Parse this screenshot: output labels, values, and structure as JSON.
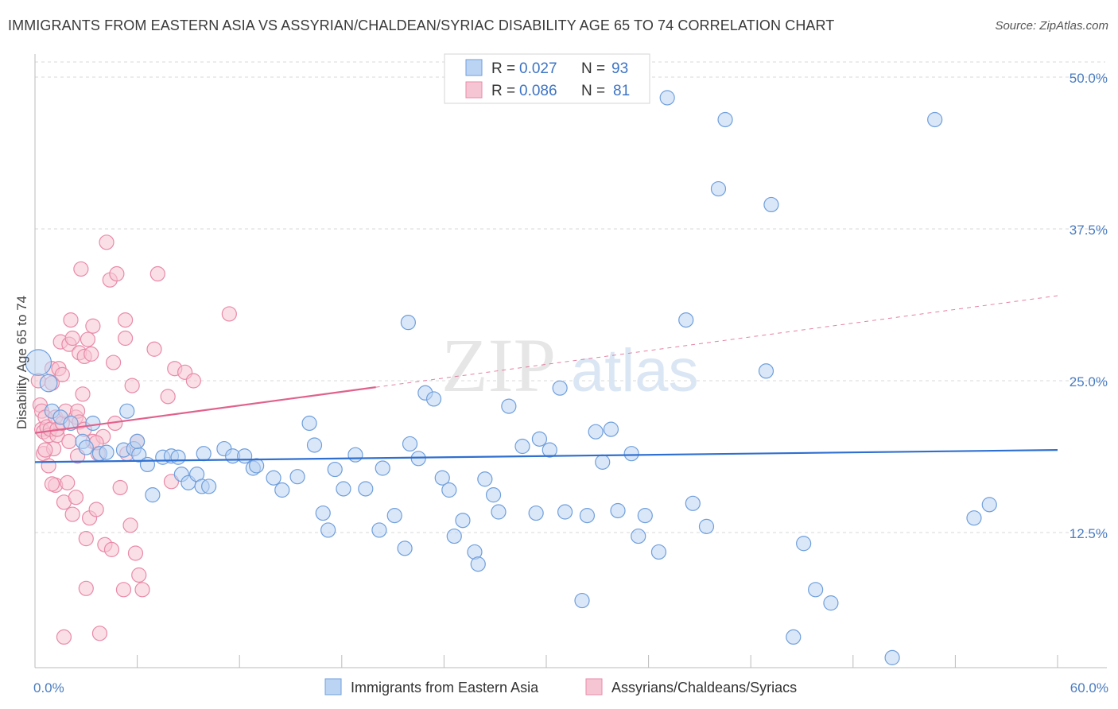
{
  "header": {
    "title": "IMMIGRANTS FROM EASTERN ASIA VS ASSYRIAN/CHALDEAN/SYRIAC DISABILITY AGE 65 TO 74 CORRELATION CHART",
    "source": "Source: ZipAtlas.com"
  },
  "watermark": {
    "zip": "ZIP",
    "atlas": "atlas"
  },
  "colors": {
    "blue": "#6f9fdc",
    "blue_fill": "#bcd4f3",
    "blue_line": "#2f6fd0",
    "pink": "#e98aa8",
    "pink_fill": "#f6c5d4",
    "pink_line": "#e0628c",
    "grid": "#d9d9d9",
    "axis_label": "#4a7cc0"
  },
  "legend": {
    "rows": [
      {
        "r_label": "R =",
        "r_value": "0.027",
        "n_label": "N =",
        "n_value": "93",
        "series": "blue"
      },
      {
        "r_label": "R =",
        "r_value": "0.086",
        "n_label": "N =",
        "n_value": "81",
        "series": "pink"
      }
    ]
  },
  "chart_data": {
    "type": "scatter",
    "ylabel": "Disability Age 65 to 74",
    "xlim": [
      0,
      60
    ],
    "ylim": [
      0,
      52
    ],
    "x_tick_labels": [
      {
        "value": 0,
        "label": "0.0%"
      },
      {
        "value": 60,
        "label": "60.0%"
      }
    ],
    "y_tick_labels": [
      {
        "value": 12.5,
        "label": "12.5%"
      },
      {
        "value": 25.0,
        "label": "25.0%"
      },
      {
        "value": 37.5,
        "label": "37.5%"
      },
      {
        "value": 50.0,
        "label": "50.0%"
      }
    ],
    "grid": true,
    "legend_position": "top-center",
    "series": [
      {
        "name": "Immigrants from Eastern Asia",
        "color": "blue",
        "r": 0.027,
        "n": 93,
        "trend": {
          "x0": 0,
          "y0": 18.3,
          "x1": 60,
          "y1": 19.3
        },
        "points": [
          [
            0.2,
            26.5,
            1.8
          ],
          [
            0.8,
            24.8,
            1.2
          ],
          [
            1.0,
            22.5,
            1
          ],
          [
            1.5,
            22.0,
            1
          ],
          [
            2.1,
            21.5,
            1
          ],
          [
            3.4,
            21.5,
            1
          ],
          [
            2.8,
            20.0,
            1
          ],
          [
            3.0,
            19.5,
            1
          ],
          [
            3.8,
            19.0,
            1
          ],
          [
            4.2,
            19.1,
            1
          ],
          [
            5.2,
            19.3,
            1
          ],
          [
            5.8,
            19.4,
            1
          ],
          [
            6.1,
            18.9,
            1
          ],
          [
            6.6,
            18.1,
            1
          ],
          [
            5.4,
            22.5,
            1
          ],
          [
            7.5,
            18.7,
            1
          ],
          [
            8.0,
            18.8,
            1
          ],
          [
            8.4,
            18.7,
            1
          ],
          [
            6.9,
            15.6,
            1
          ],
          [
            8.6,
            17.3,
            1
          ],
          [
            9.0,
            16.6,
            1
          ],
          [
            9.5,
            17.3,
            1
          ],
          [
            9.8,
            16.3,
            1
          ],
          [
            10.2,
            16.3,
            1
          ],
          [
            11.1,
            19.4,
            1
          ],
          [
            11.6,
            18.8,
            1
          ],
          [
            12.3,
            18.8,
            1
          ],
          [
            12.8,
            17.8,
            1
          ],
          [
            13.0,
            18.0,
            1
          ],
          [
            14.0,
            17.0,
            1
          ],
          [
            14.5,
            16.0,
            1
          ],
          [
            15.4,
            17.1,
            1
          ],
          [
            16.1,
            21.5,
            1
          ],
          [
            16.4,
            19.7,
            1
          ],
          [
            16.9,
            14.1,
            1
          ],
          [
            17.2,
            12.7,
            1
          ],
          [
            17.6,
            17.7,
            1
          ],
          [
            18.1,
            16.1,
            1
          ],
          [
            18.8,
            18.9,
            1
          ],
          [
            19.4,
            16.1,
            1
          ],
          [
            20.2,
            12.7,
            1
          ],
          [
            20.4,
            17.8,
            1
          ],
          [
            21.1,
            13.9,
            1
          ],
          [
            21.7,
            11.2,
            1
          ],
          [
            22.0,
            19.8,
            1
          ],
          [
            22.5,
            18.6,
            1
          ],
          [
            22.9,
            24.0,
            1
          ],
          [
            23.4,
            23.5,
            1
          ],
          [
            23.9,
            17.0,
            1
          ],
          [
            24.3,
            16.0,
            1
          ],
          [
            24.6,
            12.2,
            1
          ],
          [
            25.1,
            13.5,
            1
          ],
          [
            25.8,
            10.9,
            1
          ],
          [
            26.0,
            9.9,
            1
          ],
          [
            26.4,
            16.9,
            1
          ],
          [
            26.9,
            15.6,
            1
          ],
          [
            27.2,
            14.2,
            1
          ],
          [
            27.8,
            22.9,
            1
          ],
          [
            28.6,
            19.6,
            1
          ],
          [
            29.4,
            14.1,
            1
          ],
          [
            29.6,
            20.2,
            1
          ],
          [
            30.2,
            19.3,
            1
          ],
          [
            30.8,
            24.4,
            1
          ],
          [
            31.1,
            14.2,
            1
          ],
          [
            32.1,
            6.9,
            1
          ],
          [
            32.4,
            13.9,
            1
          ],
          [
            32.9,
            20.8,
            1
          ],
          [
            33.3,
            18.3,
            1
          ],
          [
            33.8,
            21.0,
            1
          ],
          [
            34.2,
            14.3,
            1
          ],
          [
            35.0,
            19.0,
            1
          ],
          [
            35.4,
            12.2,
            1
          ],
          [
            35.8,
            13.9,
            1
          ],
          [
            36.6,
            10.9,
            1
          ],
          [
            37.1,
            48.3,
            1
          ],
          [
            38.2,
            30.0,
            1
          ],
          [
            38.6,
            14.9,
            1
          ],
          [
            39.4,
            13.0,
            1
          ],
          [
            40.1,
            40.8,
            1
          ],
          [
            40.5,
            46.5,
            1
          ],
          [
            42.9,
            25.8,
            1
          ],
          [
            43.2,
            39.5,
            1
          ],
          [
            44.5,
            3.9,
            1
          ],
          [
            45.1,
            11.6,
            1
          ],
          [
            45.8,
            7.8,
            1
          ],
          [
            46.7,
            6.7,
            1
          ],
          [
            50.3,
            2.2,
            1
          ],
          [
            52.8,
            46.5,
            1
          ],
          [
            55.1,
            13.7,
            1
          ],
          [
            56.0,
            14.8,
            1
          ],
          [
            21.9,
            29.8,
            1
          ],
          [
            6.0,
            20.0,
            1
          ],
          [
            9.9,
            19.0,
            1
          ]
        ]
      },
      {
        "name": "Assyrians/Chaldeans/Syriacs",
        "color": "pink",
        "r": 0.086,
        "n": 81,
        "trend": {
          "x0": 0,
          "y0": 20.7,
          "x1": 60,
          "y1": 32.0,
          "solid_until_x": 20
        },
        "points": [
          [
            0.2,
            25.0,
            1
          ],
          [
            0.3,
            23.0,
            1
          ],
          [
            0.4,
            22.5,
            1
          ],
          [
            0.4,
            21.0,
            1
          ],
          [
            0.5,
            20.8,
            1
          ],
          [
            0.5,
            19.0,
            1
          ],
          [
            0.6,
            22.0,
            1
          ],
          [
            0.7,
            21.2,
            1
          ],
          [
            0.8,
            20.5,
            1
          ],
          [
            0.8,
            18.0,
            1
          ],
          [
            0.9,
            21.0,
            1
          ],
          [
            1.0,
            26.0,
            1
          ],
          [
            1.0,
            24.8,
            1
          ],
          [
            1.1,
            19.4,
            1
          ],
          [
            1.2,
            22.0,
            1
          ],
          [
            1.2,
            16.4,
            1
          ],
          [
            1.3,
            20.5,
            1
          ],
          [
            1.3,
            21.0,
            1
          ],
          [
            1.4,
            26.0,
            1
          ],
          [
            1.5,
            28.2,
            1
          ],
          [
            1.6,
            25.5,
            1
          ],
          [
            1.6,
            21.5,
            1
          ],
          [
            1.7,
            15.0,
            1
          ],
          [
            1.8,
            22.5,
            1
          ],
          [
            1.9,
            16.6,
            1
          ],
          [
            2.0,
            20.0,
            1
          ],
          [
            2.0,
            28.0,
            1
          ],
          [
            2.1,
            30.0,
            1
          ],
          [
            2.2,
            28.5,
            1
          ],
          [
            2.2,
            14.0,
            1
          ],
          [
            2.4,
            22.0,
            1
          ],
          [
            2.4,
            15.4,
            1
          ],
          [
            2.5,
            22.5,
            1
          ],
          [
            2.5,
            18.8,
            1
          ],
          [
            2.6,
            27.3,
            1
          ],
          [
            2.6,
            21.6,
            1
          ],
          [
            2.7,
            34.2,
            1
          ],
          [
            2.8,
            23.9,
            1
          ],
          [
            2.9,
            27.0,
            1
          ],
          [
            2.9,
            21.0,
            1
          ],
          [
            3.0,
            7.9,
            1
          ],
          [
            3.0,
            12.0,
            1
          ],
          [
            3.1,
            28.4,
            1
          ],
          [
            3.2,
            13.7,
            1
          ],
          [
            3.3,
            27.2,
            1
          ],
          [
            3.4,
            29.5,
            1
          ],
          [
            3.4,
            20.0,
            1
          ],
          [
            3.6,
            14.4,
            1
          ],
          [
            3.7,
            19.0,
            1
          ],
          [
            3.8,
            4.2,
            1
          ],
          [
            4.0,
            20.4,
            1
          ],
          [
            4.1,
            11.5,
            1
          ],
          [
            4.2,
            36.4,
            1
          ],
          [
            4.4,
            33.3,
            1
          ],
          [
            4.5,
            11.1,
            1
          ],
          [
            4.6,
            26.5,
            1
          ],
          [
            4.7,
            21.5,
            1
          ],
          [
            4.8,
            33.8,
            1
          ],
          [
            5.0,
            16.2,
            1
          ],
          [
            5.2,
            7.8,
            1
          ],
          [
            5.3,
            30.0,
            1
          ],
          [
            5.3,
            28.5,
            1
          ],
          [
            5.4,
            19.0,
            1
          ],
          [
            5.6,
            13.1,
            1
          ],
          [
            5.7,
            24.6,
            1
          ],
          [
            5.9,
            10.8,
            1
          ],
          [
            6.0,
            20.0,
            1
          ],
          [
            6.1,
            9.0,
            1
          ],
          [
            6.3,
            7.8,
            1
          ],
          [
            7.0,
            27.6,
            1
          ],
          [
            7.2,
            33.8,
            1
          ],
          [
            7.8,
            23.7,
            1
          ],
          [
            8.0,
            16.7,
            1
          ],
          [
            8.2,
            26.0,
            1
          ],
          [
            8.8,
            25.7,
            1
          ],
          [
            9.3,
            25.0,
            1
          ],
          [
            11.4,
            30.5,
            1
          ],
          [
            1.7,
            3.9,
            1
          ],
          [
            1.0,
            16.5,
            1
          ],
          [
            0.6,
            19.3,
            1
          ],
          [
            3.6,
            19.9,
            1
          ]
        ]
      }
    ]
  },
  "bottom_legend": [
    {
      "label": "Immigrants from Eastern Asia",
      "color": "blue"
    },
    {
      "label": "Assyrians/Chaldeans/Syriacs",
      "color": "pink"
    }
  ]
}
